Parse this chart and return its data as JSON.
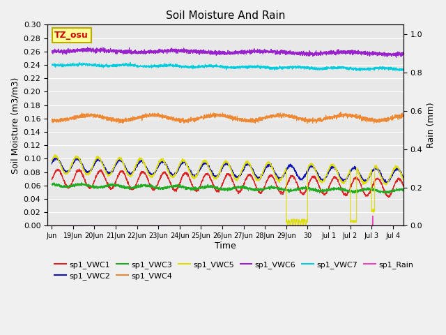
{
  "title": "Soil Moisture And Rain",
  "xlabel": "Time",
  "ylabel_left": "Soil Moisture (m3/m3)",
  "ylabel_right": "Rain (mm)",
  "annotation": "TZ_osu",
  "annotation_color": "#cc0000",
  "annotation_bg": "#ffff99",
  "annotation_border": "#bbaa00",
  "ylim_left": [
    0.0,
    0.3
  ],
  "ylim_right": [
    0.0,
    1.05
  ],
  "xtick_labels": [
    "Jun",
    "19Jun",
    "20Jun",
    "21Jun",
    "22Jun",
    "23Jun",
    "24Jun",
    "25Jun",
    "26Jun",
    "27Jun",
    "28Jun",
    "29Jun",
    "30",
    "Jul 1",
    "Jul 2",
    "Jul 3",
    "Jul 4"
  ],
  "xtick_positions": [
    -1,
    0,
    1,
    2,
    3,
    4,
    5,
    6,
    7,
    8,
    9,
    10,
    11,
    12,
    13,
    14,
    15
  ],
  "legend_entries": [
    {
      "label": "sp1_VWC1",
      "color": "#dd2222",
      "linestyle": "-"
    },
    {
      "label": "sp1_VWC2",
      "color": "#1111bb",
      "linestyle": "-"
    },
    {
      "label": "sp1_VWC3",
      "color": "#22aa22",
      "linestyle": "-"
    },
    {
      "label": "sp1_VWC4",
      "color": "#ee8833",
      "linestyle": "-"
    },
    {
      "label": "sp1_VWC5",
      "color": "#dddd00",
      "linestyle": "-"
    },
    {
      "label": "sp1_VWC6",
      "color": "#9922cc",
      "linestyle": "-"
    },
    {
      "label": "sp1_VWC7",
      "color": "#00ccdd",
      "linestyle": "-"
    },
    {
      "label": "sp1_Rain",
      "color": "#ee44bb",
      "linestyle": "-"
    }
  ],
  "bg_color": "#e8e8e8",
  "fig_bg_color": "#f0f0f0",
  "grid_color": "#ffffff",
  "n_points": 3000,
  "xlim": [
    -1.2,
    15.5
  ]
}
